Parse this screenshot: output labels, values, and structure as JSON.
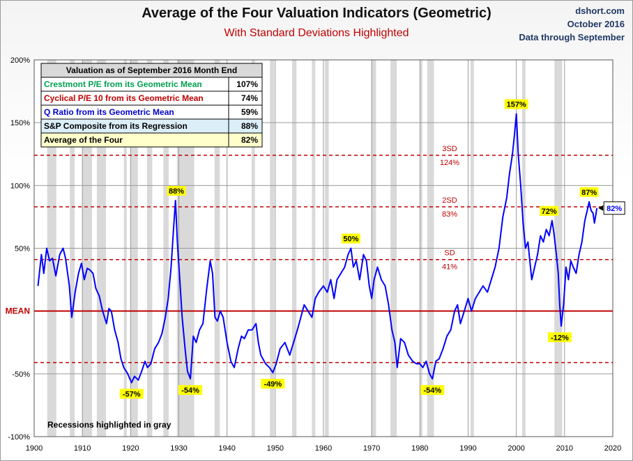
{
  "header": {
    "title": "Average of the Four Valuation Indicators (Geometric)",
    "subtitle": "With Standard Deviations Highlighted",
    "source_site": "dshort.com",
    "source_date": "October 2016",
    "source_note": "Data through September"
  },
  "colors": {
    "series": "#0000ff",
    "mean_line": "#c00000",
    "sd_lines": "#c00000",
    "recession": "#d9d9d9",
    "label_bg": "#ffff00",
    "table_green": "#00a050",
    "table_red": "#c00000",
    "table_blue": "#0000cc"
  },
  "table": {
    "header": "Valuation as of September 2016 Month End",
    "rows": [
      {
        "label": "Crestmont P/E from its Geometric Mean",
        "value": "107%",
        "color": "#00a050"
      },
      {
        "label": "Cyclical P/E 10 from its Geometric Mean",
        "value": "74%",
        "color": "#c00000"
      },
      {
        "label": "Q Ratio from its Geometric Mean",
        "value": "59%",
        "color": "#0000cc"
      },
      {
        "label": "S&P Composite from its Regression",
        "value": "88%",
        "color": "#000000"
      },
      {
        "label": "Average of the Four",
        "value": "82%",
        "color": "#000000"
      }
    ]
  },
  "recession_note": "Recessions highlighted in gray",
  "chart_data": {
    "type": "line",
    "xlim": [
      1900,
      2020
    ],
    "ylim": [
      -100,
      200
    ],
    "x_ticks": [
      1900,
      1910,
      1920,
      1930,
      1940,
      1950,
      1960,
      1970,
      1980,
      1990,
      2000,
      2010,
      2020
    ],
    "y_ticks": [
      200,
      150,
      100,
      50,
      0,
      -50,
      -100
    ],
    "y_tick_labels": [
      "200%",
      "150%",
      "100%",
      "50%",
      "MEAN",
      "-50%",
      "-100%"
    ],
    "grid": true,
    "reference_lines": [
      {
        "value": 124,
        "label_top": "3SD",
        "label_bottom": "124%"
      },
      {
        "value": 83,
        "label_top": "2SD",
        "label_bottom": "83%"
      },
      {
        "value": 41,
        "label_top": "SD",
        "label_bottom": "41%"
      },
      {
        "value": -41,
        "label_top": "",
        "label_bottom": ""
      }
    ],
    "mean_value": 0,
    "recessions": [
      [
        1902.7,
        1904.6
      ],
      [
        1907.4,
        1908.4
      ],
      [
        1910.0,
        1912.0
      ],
      [
        1913.0,
        1914.9
      ],
      [
        1918.6,
        1919.2
      ],
      [
        1920.0,
        1921.5
      ],
      [
        1923.4,
        1924.5
      ],
      [
        1926.8,
        1927.9
      ],
      [
        1929.6,
        1933.2
      ],
      [
        1937.4,
        1938.5
      ],
      [
        1945.1,
        1945.8
      ],
      [
        1948.9,
        1949.8
      ],
      [
        1953.5,
        1954.4
      ],
      [
        1957.6,
        1958.3
      ],
      [
        1960.3,
        1961.1
      ],
      [
        1969.9,
        1970.9
      ],
      [
        1973.9,
        1975.2
      ],
      [
        1980.0,
        1980.5
      ],
      [
        1981.5,
        1982.9
      ],
      [
        1990.5,
        1991.2
      ],
      [
        2001.2,
        2001.9
      ],
      [
        2007.9,
        2009.5
      ]
    ],
    "series": [
      {
        "x": [
          1900.8,
          1901.5,
          1902.0,
          1902.6,
          1903.2,
          1903.8,
          1904.5,
          1905.3,
          1906.0,
          1906.5,
          1907.3,
          1907.8,
          1908.5,
          1909.2,
          1909.8,
          1910.4,
          1911.0,
          1911.5,
          1912.2,
          1912.8,
          1913.5,
          1914.2,
          1915.0,
          1915.5,
          1916.0,
          1916.7,
          1917.4,
          1918.0,
          1918.6,
          1919.4,
          1920.2,
          1920.8,
          1921.6,
          1922.3,
          1923.0,
          1923.5,
          1924.2,
          1925.0,
          1925.8,
          1926.5,
          1927.2,
          1927.8,
          1928.4,
          1928.9,
          1929.3,
          1929.7,
          1930.2,
          1930.7,
          1931.3,
          1931.8,
          1932.4,
          1933.0,
          1933.6,
          1934.3,
          1935.0,
          1935.8,
          1936.5,
          1937.0,
          1937.5,
          1938.0,
          1938.6,
          1939.2,
          1940.0,
          1940.8,
          1941.5,
          1942.3,
          1943.0,
          1943.6,
          1944.4,
          1945.2,
          1946.0,
          1946.5,
          1947.0,
          1948.0,
          1948.8,
          1949.5,
          1950.2,
          1951.0,
          1952.0,
          1953.0,
          1953.8,
          1954.6,
          1955.3,
          1956.0,
          1956.8,
          1957.6,
          1958.3,
          1959.0,
          1960.0,
          1960.8,
          1961.5,
          1962.2,
          1962.8,
          1963.6,
          1964.4,
          1965.1,
          1965.7,
          1966.2,
          1966.8,
          1967.5,
          1968.3,
          1968.9,
          1969.5,
          1970.0,
          1970.5,
          1971.2,
          1972.0,
          1972.8,
          1973.5,
          1974.2,
          1974.8,
          1975.3,
          1976.0,
          1976.8,
          1977.6,
          1978.5,
          1979.3,
          1980.0,
          1980.6,
          1981.3,
          1982.0,
          1982.6,
          1983.3,
          1984.0,
          1984.8,
          1985.6,
          1986.4,
          1987.2,
          1987.8,
          1988.4,
          1989.2,
          1990.0,
          1990.7,
          1991.5,
          1992.3,
          1993.1,
          1994.0,
          1994.8,
          1995.6,
          1996.4,
          1997.2,
          1998.0,
          1998.6,
          1999.2,
          1999.6,
          2000.0,
          2000.4,
          2000.9,
          2001.4,
          2001.9,
          2002.4,
          2002.8,
          2003.2,
          2003.8,
          2004.4,
          2005.0,
          2005.6,
          2006.2,
          2006.8,
          2007.4,
          2007.8,
          2008.3,
          2008.7,
          2009.0,
          2009.3,
          2009.8,
          2010.3,
          2010.8,
          2011.3,
          2011.8,
          2012.4,
          2013.0,
          2013.6,
          2014.2,
          2014.7,
          2015.1,
          2015.5,
          2015.9,
          2016.2,
          2016.7
        ],
        "y": [
          20,
          45,
          30,
          50,
          40,
          42,
          28,
          45,
          50,
          42,
          20,
          -5,
          15,
          30,
          38,
          25,
          34,
          33,
          30,
          18,
          12,
          0,
          -10,
          2,
          0,
          -15,
          -25,
          -38,
          -45,
          -50,
          -57,
          -52,
          -55,
          -48,
          -40,
          -45,
          -42,
          -30,
          -25,
          -18,
          -5,
          10,
          35,
          65,
          88,
          55,
          25,
          -5,
          -30,
          -48,
          -54,
          -20,
          -25,
          -15,
          -10,
          18,
          40,
          30,
          -5,
          -8,
          0,
          -5,
          -25,
          -40,
          -45,
          -30,
          -20,
          -22,
          -15,
          -15,
          -10,
          -25,
          -35,
          -42,
          -45,
          -49,
          -42,
          -30,
          -25,
          -35,
          -25,
          -15,
          -5,
          5,
          0,
          -5,
          10,
          15,
          20,
          15,
          25,
          10,
          25,
          30,
          35,
          45,
          50,
          35,
          40,
          25,
          45,
          40,
          20,
          10,
          25,
          35,
          25,
          20,
          5,
          -15,
          -25,
          -45,
          -22,
          -25,
          -35,
          -40,
          -42,
          -42,
          -45,
          -40,
          -50,
          -54,
          -40,
          -38,
          -30,
          -20,
          -15,
          0,
          5,
          -10,
          0,
          10,
          0,
          10,
          15,
          20,
          15,
          25,
          35,
          50,
          75,
          90,
          110,
          125,
          140,
          157,
          125,
          100,
          70,
          50,
          55,
          40,
          25,
          35,
          45,
          60,
          55,
          65,
          60,
          72,
          62,
          45,
          30,
          5,
          -12,
          5,
          35,
          25,
          40,
          35,
          30,
          45,
          55,
          72,
          80,
          87,
          80,
          78,
          70,
          82
        ]
      }
    ],
    "annotations": [
      {
        "x": 1929.5,
        "y": 88,
        "text": "88%",
        "pos": "above"
      },
      {
        "x": 1965.7,
        "y": 50,
        "text": "50%",
        "pos": "above"
      },
      {
        "x": 2000.0,
        "y": 157,
        "text": "157%",
        "pos": "above"
      },
      {
        "x": 2006.8,
        "y": 72,
        "text": "72%",
        "pos": "above"
      },
      {
        "x": 2015.1,
        "y": 87,
        "text": "87%",
        "pos": "above"
      },
      {
        "x": 1920.2,
        "y": -57,
        "text": "-57%",
        "pos": "below"
      },
      {
        "x": 1932.4,
        "y": -54,
        "text": "-54%",
        "pos": "below"
      },
      {
        "x": 1949.5,
        "y": -49,
        "text": "-49%",
        "pos": "below"
      },
      {
        "x": 1982.6,
        "y": -54,
        "text": "-54%",
        "pos": "below"
      },
      {
        "x": 2009.0,
        "y": -12,
        "text": "-12%",
        "pos": "below"
      }
    ],
    "current_value": {
      "x": 2016.7,
      "y": 82,
      "text": "82%"
    }
  }
}
